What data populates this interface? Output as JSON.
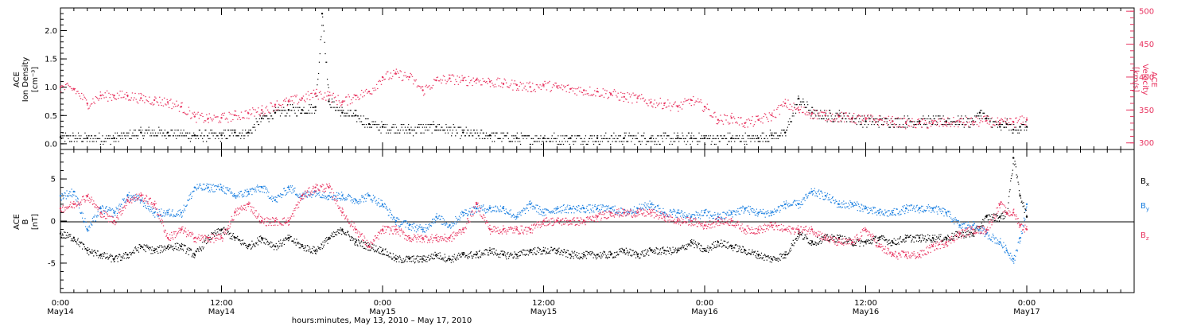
{
  "colors": {
    "black": "#000000",
    "magenta": "#e8335f",
    "blue": "#1a7fe0"
  },
  "xaxis": {
    "title": "hours:minutes, May 13, 2010 – May 17, 2010",
    "range_hours": [
      0,
      80
    ],
    "ticks": [
      {
        "t": 0,
        "time": "0:00",
        "day": "May14"
      },
      {
        "t": 12,
        "time": "12:00",
        "day": "May14"
      },
      {
        "t": 24,
        "time": "0:00",
        "day": "May15"
      },
      {
        "t": 36,
        "time": "12:00",
        "day": "May15"
      },
      {
        "t": 48,
        "time": "0:00",
        "day": "May16"
      },
      {
        "t": 60,
        "time": "12:00",
        "day": "May16"
      },
      {
        "t": 72,
        "time": "0:00",
        "day": "May17"
      }
    ]
  },
  "panel1": {
    "ylabel_left": [
      "ACE",
      "Ion Density",
      "[cm⁻³]"
    ],
    "ylabel_right": [
      "ACE",
      "Velocity",
      "[km/s]"
    ],
    "yticks_left": [
      "0.0",
      "0.5",
      "1.0",
      "1.5",
      "2.0"
    ],
    "yticks_right": [
      "300",
      "350",
      "400",
      "450",
      "500"
    ]
  },
  "panel2": {
    "ylabel": [
      "ACE",
      "B",
      "[nT]"
    ],
    "yticks": [
      "-5",
      "0",
      "5"
    ],
    "legend": [
      {
        "label": "B",
        "sub": "x",
        "color": "#000000"
      },
      {
        "label": "B",
        "sub": "y",
        "color": "#1a7fe0"
      },
      {
        "label": "B",
        "sub": "z",
        "color": "#e8335f"
      }
    ]
  },
  "chart_data": [
    {
      "type": "scatter",
      "panel": "top",
      "xlabel": "hours:minutes, May 13, 2010 – May 17, 2010",
      "ylabel": "ACE Ion Density [cm⁻³]",
      "ylim": [
        -0.1,
        2.4
      ],
      "y2label": "ACE Velocity [km/s]",
      "y2lim": [
        290,
        505
      ],
      "series": [
        {
          "name": "ACE Ion Density",
          "axis": "left",
          "color": "#000000",
          "x": [
            0,
            2,
            4,
            6,
            8,
            10,
            12,
            13,
            14,
            15,
            16,
            17,
            18,
            19,
            19.5,
            20,
            21,
            22,
            23,
            24,
            26,
            28,
            30,
            32,
            34,
            36,
            38,
            40,
            42,
            44,
            46,
            47,
            48,
            50,
            52,
            53,
            54,
            55,
            56,
            57,
            58,
            59,
            60,
            62,
            64,
            66,
            68,
            68.5,
            69,
            70,
            70.5,
            71,
            71.5,
            72
          ],
          "y": [
            0.12,
            0.1,
            0.1,
            0.2,
            0.2,
            0.15,
            0.15,
            0.2,
            0.2,
            0.45,
            0.55,
            0.6,
            0.6,
            0.65,
            2.3,
            0.75,
            0.55,
            0.5,
            0.35,
            0.3,
            0.25,
            0.3,
            0.2,
            0.15,
            0.1,
            0.1,
            0.1,
            0.1,
            0.1,
            0.1,
            0.1,
            0.1,
            0.1,
            0.1,
            0.1,
            0.15,
            0.2,
            0.8,
            0.55,
            0.5,
            0.5,
            0.45,
            0.4,
            0.4,
            0.4,
            0.4,
            0.4,
            0.55,
            0.45,
            0.3,
            0.35,
            0.25,
            0.3,
            0.3
          ]
        },
        {
          "name": "ACE Velocity",
          "axis": "right",
          "color": "#e8335f",
          "x": [
            0,
            1,
            2,
            3,
            4,
            5,
            6,
            7,
            8,
            9,
            10,
            11,
            12,
            13,
            14,
            15,
            16,
            17,
            18,
            19,
            20,
            21,
            22,
            23,
            24,
            25,
            26,
            27,
            28,
            29,
            30,
            31,
            32,
            33,
            34,
            35,
            36,
            37,
            38,
            39,
            40,
            41,
            42,
            43,
            44,
            45,
            46,
            47,
            48,
            49,
            50,
            51,
            52,
            53,
            54,
            55,
            56,
            57,
            58,
            59,
            60,
            61,
            62,
            63,
            64,
            65,
            66,
            67,
            68,
            69,
            70,
            71,
            72
          ],
          "y": [
            385,
            382,
            360,
            372,
            372,
            372,
            368,
            365,
            362,
            355,
            340,
            337,
            338,
            342,
            345,
            350,
            358,
            363,
            368,
            375,
            372,
            362,
            372,
            378,
            400,
            405,
            400,
            380,
            395,
            398,
            395,
            396,
            393,
            390,
            388,
            385,
            388,
            385,
            382,
            380,
            378,
            375,
            370,
            368,
            362,
            360,
            355,
            365,
            355,
            335,
            338,
            330,
            335,
            342,
            360,
            350,
            345,
            342,
            340,
            338,
            336,
            335,
            333,
            330,
            330,
            330,
            331,
            332,
            332,
            334,
            330,
            332,
            335
          ]
        }
      ]
    },
    {
      "type": "scatter",
      "panel": "bottom",
      "ylabel": "ACE B [nT]",
      "ylim": [
        -8.5,
        8.5
      ],
      "series": [
        {
          "name": "Bx",
          "color": "#000000",
          "x": [
            0,
            1,
            2,
            3,
            4,
            5,
            6,
            7,
            8,
            9,
            10,
            11,
            12,
            13,
            14,
            15,
            16,
            17,
            18,
            19,
            20,
            21,
            22,
            23,
            24,
            25,
            26,
            27,
            28,
            29,
            30,
            31,
            32,
            33,
            34,
            35,
            36,
            37,
            38,
            39,
            40,
            41,
            42,
            43,
            44,
            45,
            46,
            47,
            48,
            49,
            50,
            51,
            52,
            53,
            54,
            55,
            56,
            57,
            58,
            59,
            60,
            61,
            62,
            63,
            64,
            65,
            66,
            67,
            68,
            69,
            70,
            70.5,
            71,
            71.5,
            72
          ],
          "y": [
            -1.5,
            -2,
            -3.5,
            -4,
            -4.5,
            -4,
            -3,
            -3.5,
            -3,
            -3,
            -4,
            -2,
            -1,
            -2,
            -3,
            -2,
            -3,
            -2,
            -3,
            -3.5,
            -2,
            -1,
            -2.5,
            -3,
            -3.5,
            -4.5,
            -4.5,
            -4.5,
            -4,
            -4.5,
            -4,
            -4,
            -3.5,
            -4,
            -4,
            -3.5,
            -3.5,
            -3.5,
            -4,
            -4,
            -4,
            -4,
            -3.5,
            -4,
            -3.5,
            -3.5,
            -3.5,
            -2.5,
            -3.5,
            -2.5,
            -3,
            -3.5,
            -4,
            -4.5,
            -4,
            -1.5,
            -2.5,
            -2,
            -2,
            -2.5,
            -2.5,
            -2,
            -2.5,
            -2,
            -2,
            -2,
            -2,
            -1.5,
            -1.5,
            0.5,
            0.5,
            1,
            7.5,
            3,
            0.5
          ]
        },
        {
          "name": "By",
          "color": "#1a7fe0",
          "x": [
            0,
            1,
            2,
            3,
            4,
            5,
            6,
            7,
            8,
            9,
            10,
            11,
            12,
            13,
            14,
            15,
            16,
            17,
            18,
            19,
            20,
            21,
            22,
            23,
            24,
            25,
            26,
            27,
            28,
            29,
            30,
            31,
            32,
            33,
            34,
            35,
            36,
            37,
            38,
            39,
            40,
            41,
            42,
            43,
            44,
            45,
            46,
            47,
            48,
            49,
            50,
            51,
            52,
            53,
            54,
            55,
            56,
            57,
            58,
            59,
            60,
            61,
            62,
            63,
            64,
            65,
            66,
            67,
            68,
            69,
            70,
            70.5,
            71,
            71.5,
            72
          ],
          "y": [
            3,
            3.5,
            -1,
            1.5,
            1,
            3,
            2.5,
            1,
            1,
            1,
            4,
            4,
            4,
            3,
            3.5,
            4,
            2.5,
            4,
            3,
            3.5,
            3,
            3,
            2.5,
            3,
            2,
            0,
            -0.5,
            -1,
            0.5,
            -0.5,
            1,
            1.5,
            1.5,
            1.5,
            0.5,
            2,
            1,
            1.5,
            1.5,
            1.5,
            1.5,
            1.5,
            1,
            1.5,
            2,
            1,
            1,
            0.5,
            1,
            0.5,
            1,
            1.5,
            1,
            1,
            2,
            2,
            3.5,
            3,
            2,
            2,
            1.5,
            1,
            1,
            1.5,
            1.5,
            1.5,
            1,
            -0.5,
            -0.5,
            -1.5,
            -2.5,
            -3.5,
            -4.5,
            -2,
            2
          ]
        },
        {
          "name": "Bz",
          "color": "#e8335f",
          "x": [
            0,
            1,
            2,
            3,
            4,
            5,
            6,
            7,
            8,
            9,
            10,
            11,
            12,
            13,
            14,
            15,
            16,
            17,
            18,
            19,
            20,
            21,
            22,
            23,
            24,
            25,
            26,
            27,
            28,
            29,
            30,
            31,
            32,
            33,
            34,
            35,
            36,
            37,
            38,
            39,
            40,
            41,
            42,
            43,
            44,
            45,
            46,
            47,
            48,
            49,
            50,
            51,
            52,
            53,
            54,
            55,
            56,
            57,
            58,
            59,
            60,
            61,
            62,
            63,
            64,
            65,
            66,
            67,
            68,
            69,
            70,
            70.5,
            71,
            71.5,
            72
          ],
          "y": [
            1.5,
            2,
            3,
            1,
            0,
            2.5,
            3,
            2,
            -2,
            -1,
            -2,
            -2,
            -2,
            1,
            2,
            0,
            0,
            0,
            3,
            4,
            4,
            1,
            -1,
            -3,
            -1,
            -1,
            -2,
            -2,
            -2,
            -2,
            -1,
            2,
            -1,
            -1,
            -1,
            -1,
            0,
            0,
            0,
            0,
            0.5,
            1,
            1,
            1,
            1,
            0.5,
            0,
            0,
            -0.5,
            0,
            0,
            -1,
            -1,
            -0.5,
            -1,
            -1,
            -1,
            -2,
            -2.5,
            -2.5,
            -1,
            -3,
            -4,
            -4,
            -4,
            -3,
            -2.5,
            -1.5,
            -1,
            -1,
            2,
            1,
            1,
            -0.5,
            -1
          ]
        }
      ]
    }
  ]
}
